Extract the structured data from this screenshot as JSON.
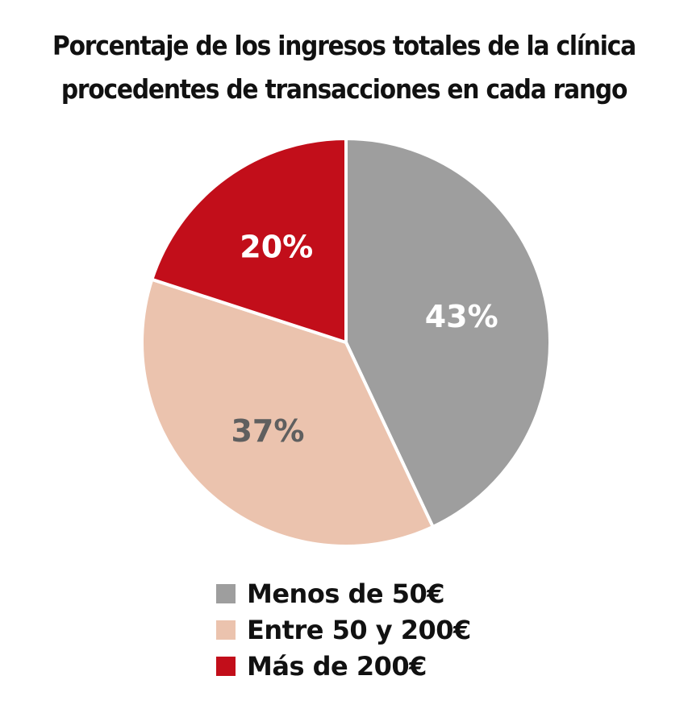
{
  "chart_data": {
    "type": "pie",
    "title": "Porcentaje de los ingresos totales de la clínica procedentes de transacciones en cada rango",
    "title_lines": [
      "Porcentaje de los ingresos totales de la clínica",
      "procedentes de transacciones en cada rango"
    ],
    "start_angle": "top (12 o'clock), clockwise",
    "slices": [
      {
        "label": "Menos de 50€",
        "value": 43,
        "display": "43%",
        "color": "#9e9e9e",
        "label_color": "#ffffff"
      },
      {
        "label": "Entre 50 y 200€",
        "value": 37,
        "display": "37%",
        "color": "#ebc3ae",
        "label_color": "#5f5f5f"
      },
      {
        "label": "Más de 200€",
        "value": 20,
        "display": "20%",
        "color": "#c20e1a",
        "label_color": "#ffffff"
      }
    ],
    "legend_position": "bottom"
  }
}
